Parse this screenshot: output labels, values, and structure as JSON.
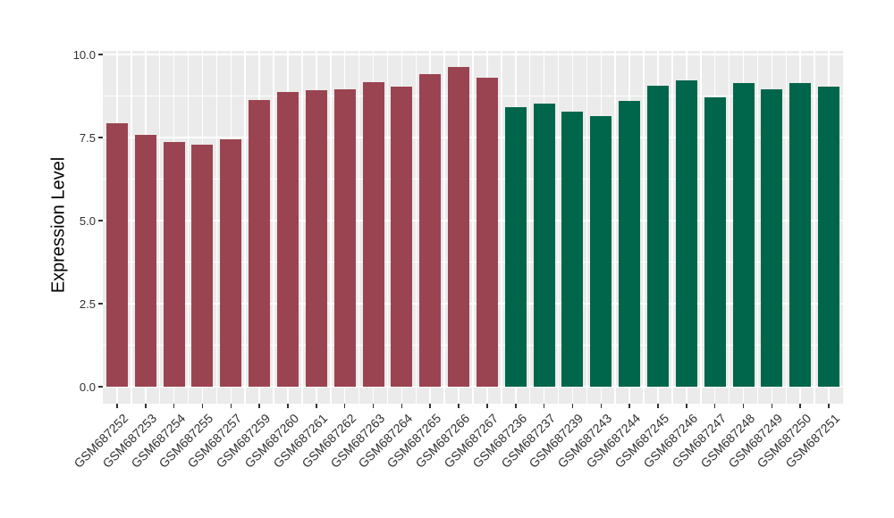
{
  "chart_data": {
    "type": "bar",
    "title": "",
    "xlabel": "",
    "ylabel": "Expression Level",
    "ylim": [
      0,
      10.1
    ],
    "yticks": [
      0.0,
      2.5,
      5.0,
      7.5,
      10.0
    ],
    "ytick_labels": [
      "0.0",
      "2.5",
      "5.0",
      "7.5",
      "10.0"
    ],
    "grid": true,
    "legend": "none",
    "x_label_angle": 45,
    "categories": [
      "GSM687252",
      "GSM687253",
      "GSM687254",
      "GSM687255",
      "GSM687257",
      "GSM687259",
      "GSM687260",
      "GSM687261",
      "GSM687262",
      "GSM687263",
      "GSM687264",
      "GSM687265",
      "GSM687266",
      "GSM687267",
      "GSM687236",
      "GSM687237",
      "GSM687239",
      "GSM687243",
      "GSM687244",
      "GSM687245",
      "GSM687246",
      "GSM687247",
      "GSM687248",
      "GSM687249",
      "GSM687250",
      "GSM687251"
    ],
    "values": [
      7.92,
      7.59,
      7.37,
      7.29,
      7.44,
      8.64,
      8.87,
      8.93,
      8.96,
      9.17,
      9.04,
      9.42,
      9.63,
      9.29,
      8.42,
      8.52,
      8.29,
      8.14,
      8.61,
      9.05,
      9.22,
      8.72,
      9.14,
      8.94,
      9.13,
      9.03
    ],
    "bar_group": [
      "group1",
      "group1",
      "group1",
      "group1",
      "group1",
      "group1",
      "group1",
      "group1",
      "group1",
      "group1",
      "group1",
      "group1",
      "group1",
      "group1",
      "group2",
      "group2",
      "group2",
      "group2",
      "group2",
      "group2",
      "group2",
      "group2",
      "group2",
      "group2",
      "group2",
      "group2"
    ],
    "group_colors": {
      "group1": "#9B4451",
      "group2": "#00664B"
    },
    "panel_background": "#EBEBEB",
    "gridline_color": "#FFFFFF"
  }
}
